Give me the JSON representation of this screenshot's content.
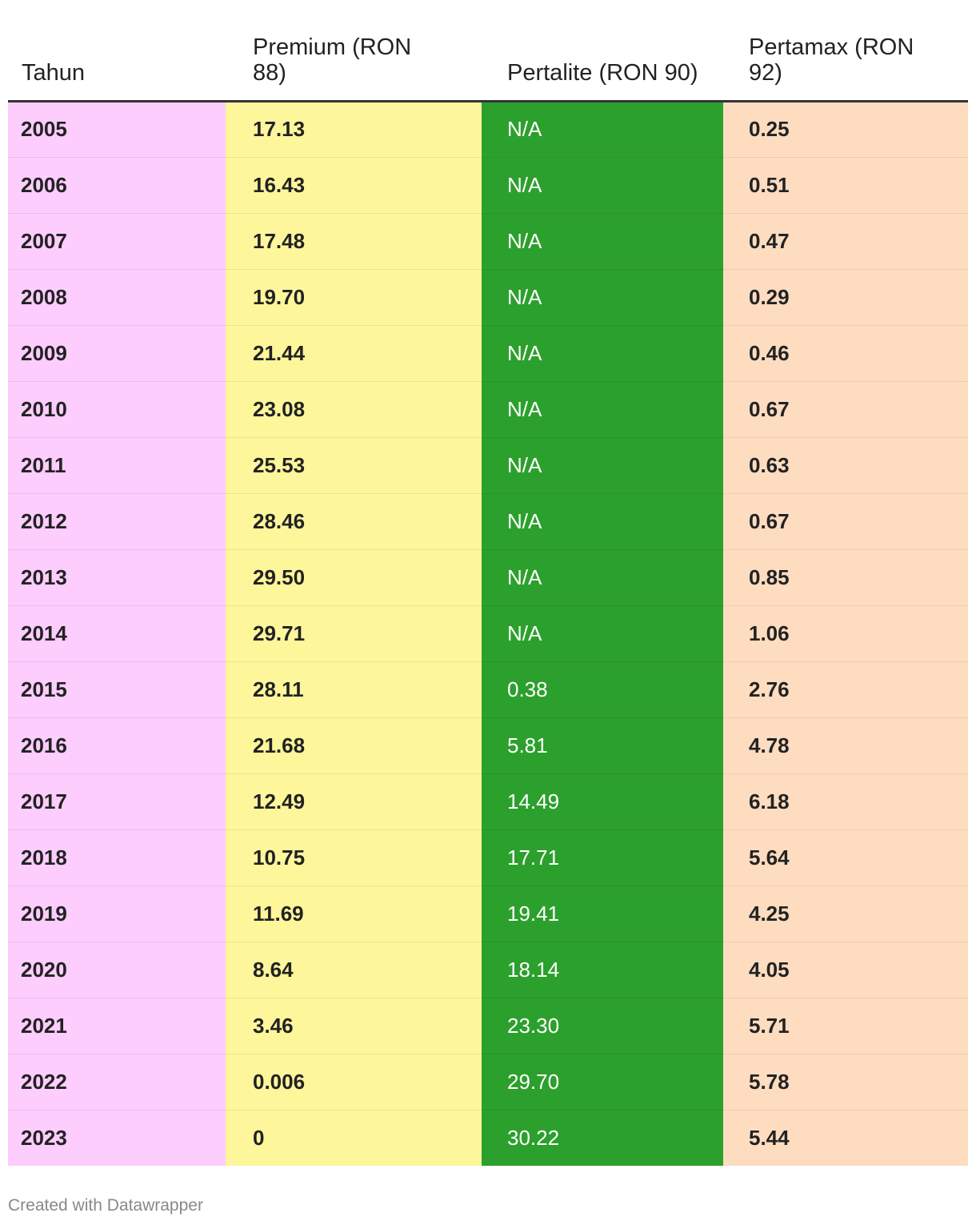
{
  "chart_data": {
    "type": "table",
    "columns": [
      "Tahun",
      "Premium (RON 88)",
      "Pertalite (RON 90)",
      "Pertamax (RON 92)"
    ],
    "rows": [
      [
        "2005",
        "17.13",
        "N/A",
        "0.25"
      ],
      [
        "2006",
        "16.43",
        "N/A",
        "0.51"
      ],
      [
        "2007",
        "17.48",
        "N/A",
        "0.47"
      ],
      [
        "2008",
        "19.70",
        "N/A",
        "0.29"
      ],
      [
        "2009",
        "21.44",
        "N/A",
        "0.46"
      ],
      [
        "2010",
        "23.08",
        "N/A",
        "0.67"
      ],
      [
        "2011",
        "25.53",
        "N/A",
        "0.63"
      ],
      [
        "2012",
        "28.46",
        "N/A",
        "0.67"
      ],
      [
        "2013",
        "29.50",
        "N/A",
        "0.85"
      ],
      [
        "2014",
        "29.71",
        "N/A",
        "1.06"
      ],
      [
        "2015",
        "28.11",
        "0.38",
        "2.76"
      ],
      [
        "2016",
        "21.68",
        "5.81",
        "4.78"
      ],
      [
        "2017",
        "12.49",
        "14.49",
        "6.18"
      ],
      [
        "2018",
        "10.75",
        "17.71",
        "5.64"
      ],
      [
        "2019",
        "11.69",
        "19.41",
        "4.25"
      ],
      [
        "2020",
        "8.64",
        "18.14",
        "4.05"
      ],
      [
        "2021",
        "3.46",
        "23.30",
        "5.71"
      ],
      [
        "2022",
        "0.006",
        "29.70",
        "5.78"
      ],
      [
        "2023",
        "0",
        "30.22",
        "5.44"
      ]
    ],
    "column_colors": [
      "#fccdfd",
      "#fdf69b",
      "#2ca02c",
      "#fedcc0"
    ]
  },
  "footer": {
    "credit": "Created with Datawrapper"
  }
}
